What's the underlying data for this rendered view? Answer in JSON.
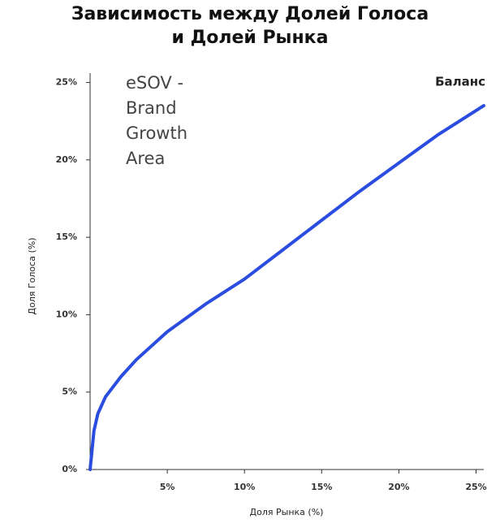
{
  "chart_data": {
    "type": "line",
    "title": [
      "Зависимость между Долей Голоса",
      "и Долей Рынка"
    ],
    "x_label": "Доля Рынка (%)",
    "y_label": "Доля Голоса (%)",
    "annotation": [
      "eSOV -",
      "Brand",
      "Growth",
      "Area"
    ],
    "x": [
      0,
      0.25,
      0.5,
      1,
      2,
      3,
      5,
      7.5,
      10,
      12.5,
      15,
      17.5,
      20,
      22.5,
      25.5
    ],
    "series": [
      {
        "name": "Баланс",
        "color": "#2a4de0",
        "values": [
          0,
          2.5,
          3.6,
          4.7,
          6.0,
          7.1,
          8.9,
          10.7,
          12.3,
          14.2,
          16.1,
          18.0,
          19.8,
          21.6,
          23.5
        ]
      }
    ],
    "xlim": [
      0,
      25.5
    ],
    "ylim": [
      0,
      25.5
    ],
    "xticks": [
      {
        "value": 5,
        "label": "5%"
      },
      {
        "value": 10,
        "label": "10%"
      },
      {
        "value": 15,
        "label": "15%"
      },
      {
        "value": 20,
        "label": "20%"
      },
      {
        "value": 25,
        "label": "25%"
      }
    ],
    "yticks": [
      {
        "value": 0,
        "label": "0%"
      },
      {
        "value": 5,
        "label": "5%"
      },
      {
        "value": 10,
        "label": "10%"
      },
      {
        "value": 15,
        "label": "15%"
      },
      {
        "value": 20,
        "label": "20%"
      },
      {
        "value": 25,
        "label": "25%"
      }
    ],
    "grid": false
  }
}
